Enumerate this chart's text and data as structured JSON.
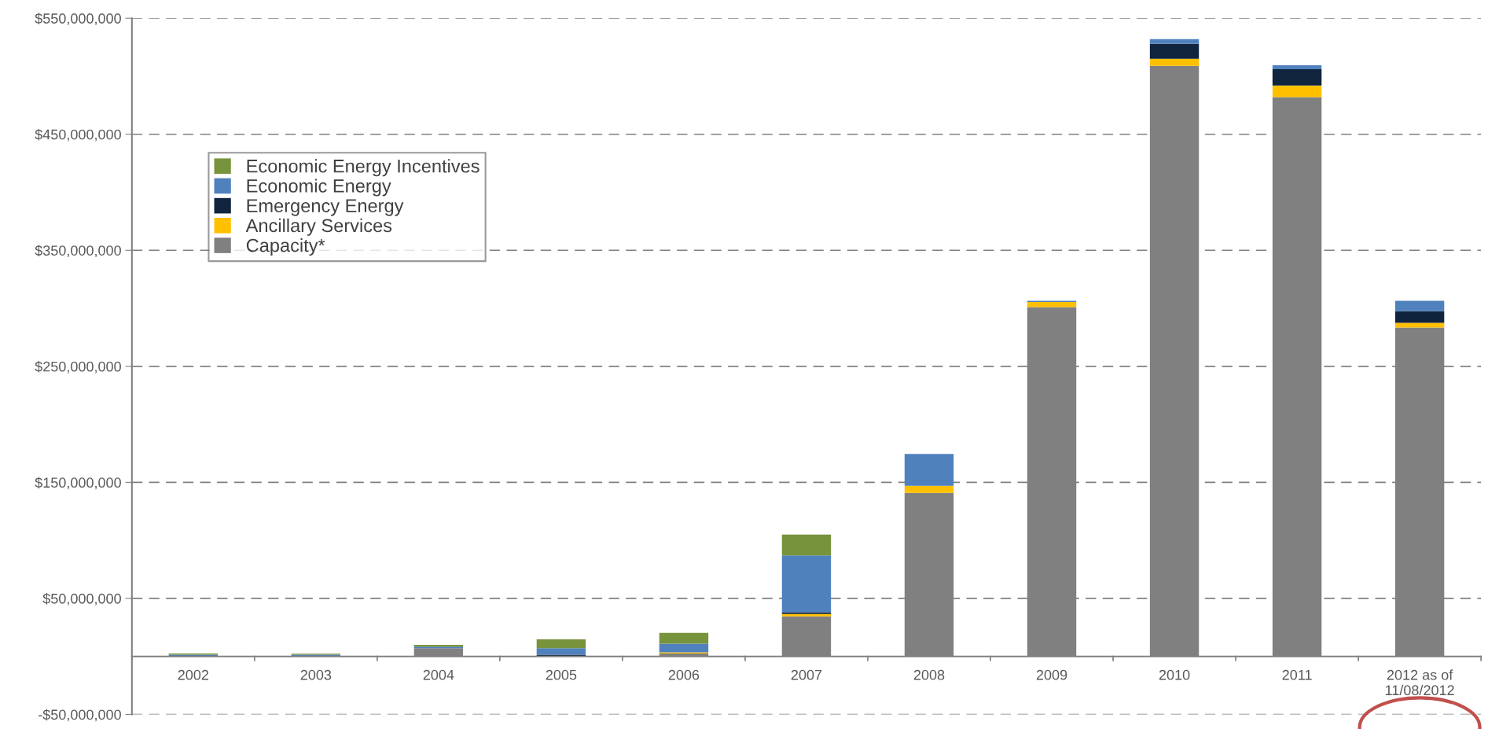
{
  "chart_data": {
    "type": "bar",
    "stacked": true,
    "categories": [
      "2002",
      "2003",
      "2004",
      "2005",
      "2006",
      "2007",
      "2008",
      "2009",
      "2010",
      "2011",
      "2012 as of\n11/08/2012"
    ],
    "series": [
      {
        "name": "Capacity*",
        "color": "#808080",
        "values": [
          0,
          0,
          7000000,
          500000,
          2500000,
          34500000,
          141000000,
          301000000,
          509000000,
          482000000,
          283500000
        ]
      },
      {
        "name": "Ancillary Services",
        "color": "#ffc000",
        "values": [
          0,
          0,
          0,
          0,
          1000000,
          2000000,
          6000000,
          4500000,
          6000000,
          10000000,
          4000000
        ]
      },
      {
        "name": "Emergency Energy",
        "color": "#10243e",
        "values": [
          0,
          0,
          0,
          1000000,
          0,
          1500000,
          0,
          0,
          13000000,
          14000000,
          10000000
        ]
      },
      {
        "name": "Economic Energy",
        "color": "#4f81bd",
        "values": [
          1500000,
          1500000,
          1500000,
          5500000,
          7400000,
          49000000,
          27500000,
          1000000,
          4000000,
          3500000,
          9000000
        ]
      },
      {
        "name": "Economic Energy Incentives",
        "color": "#77933c",
        "values": [
          1000000,
          800000,
          1500000,
          7700000,
          9400000,
          18000000,
          0,
          0,
          0,
          0,
          0
        ]
      }
    ],
    "ylim": [
      -50000000,
      550000000
    ],
    "yticks": [
      {
        "value": -50000000,
        "label": "-$50,000,000"
      },
      {
        "value": 50000000,
        "label": "$50,000,000"
      },
      {
        "value": 150000000,
        "label": "$150,000,000"
      },
      {
        "value": 250000000,
        "label": "$250,000,000"
      },
      {
        "value": 350000000,
        "label": "$350,000,000"
      },
      {
        "value": 450000000,
        "label": "$450,000,000"
      },
      {
        "value": 550000000,
        "label": "$550,000,000"
      }
    ],
    "grid": "y",
    "legend": "top left"
  }
}
